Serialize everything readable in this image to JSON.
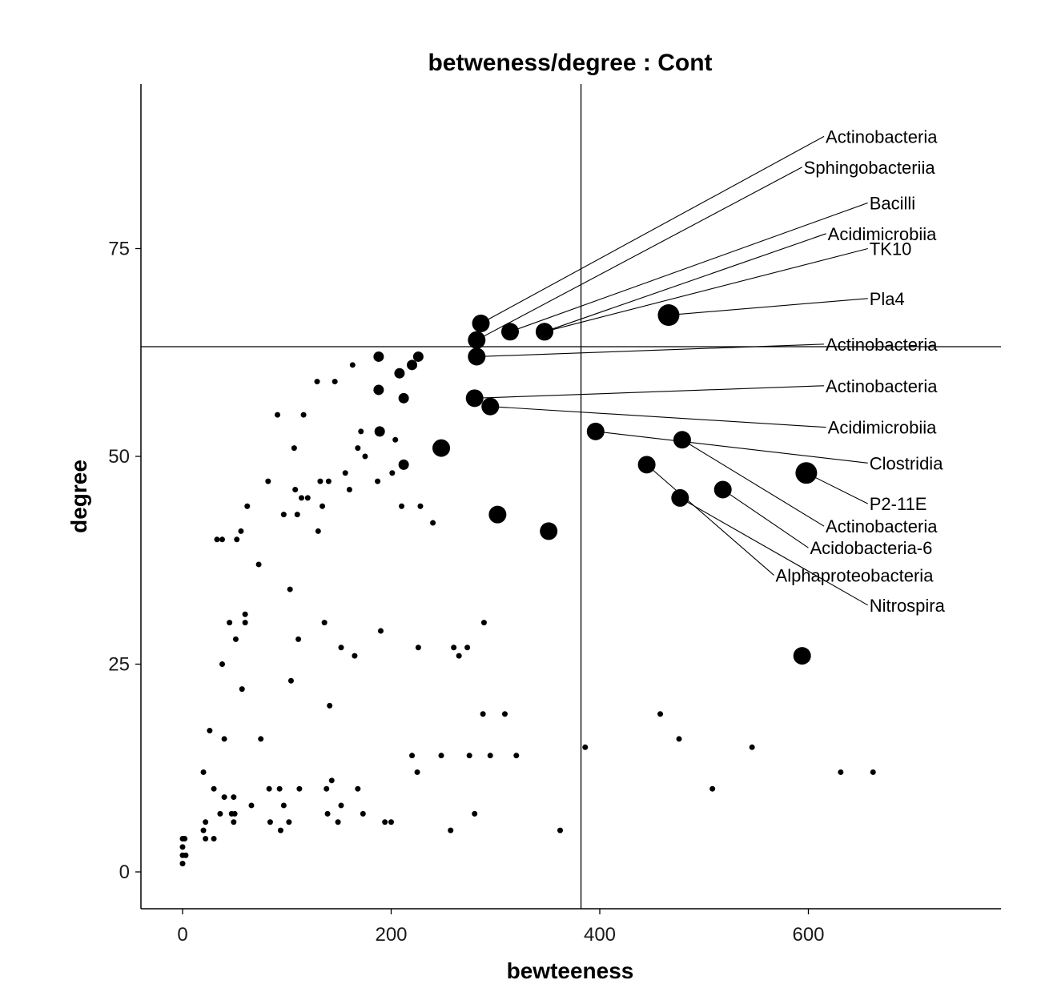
{
  "chart_data": {
    "type": "scatter",
    "title": "betweness/degree : Cont",
    "xlabel": "bewteeness",
    "ylabel": "degree",
    "xlim": [
      -40,
      790
    ],
    "ylim": [
      -5,
      95
    ],
    "x_ticks": [
      0,
      200,
      400,
      600
    ],
    "y_ticks": [
      0,
      25,
      50,
      75
    ],
    "x_tick_labels": [
      "0",
      "200",
      "400",
      "600"
    ],
    "y_tick_labels": [
      "0",
      "25",
      "50",
      "75"
    ],
    "reference_lines": {
      "x": 382,
      "y": 63.2
    },
    "grid": false,
    "legend": "none",
    "colors": {
      "points": "#000000",
      "lines": "#000000",
      "background": "#ffffff"
    },
    "small_points": [
      [
        0,
        1
      ],
      [
        0,
        2
      ],
      [
        0,
        3
      ],
      [
        0,
        4
      ],
      [
        2,
        4
      ],
      [
        3,
        2
      ],
      [
        20,
        5
      ],
      [
        20,
        12
      ],
      [
        22,
        6
      ],
      [
        22,
        4
      ],
      [
        26,
        17
      ],
      [
        30,
        10
      ],
      [
        30,
        4
      ],
      [
        33,
        40
      ],
      [
        38,
        40
      ],
      [
        36,
        7
      ],
      [
        38,
        25
      ],
      [
        40,
        16
      ],
      [
        40,
        9
      ],
      [
        45,
        30
      ],
      [
        47,
        7
      ],
      [
        49,
        9
      ],
      [
        49,
        6
      ],
      [
        50,
        7
      ],
      [
        51,
        28
      ],
      [
        52,
        40
      ],
      [
        56,
        41
      ],
      [
        57,
        22
      ],
      [
        60,
        30
      ],
      [
        60,
        31
      ],
      [
        62,
        44
      ],
      [
        66,
        8
      ],
      [
        73,
        37
      ],
      [
        75,
        16
      ],
      [
        82,
        47
      ],
      [
        83,
        10
      ],
      [
        84,
        6
      ],
      [
        91,
        55
      ],
      [
        93,
        10
      ],
      [
        94,
        5
      ],
      [
        97,
        43
      ],
      [
        97,
        8
      ],
      [
        102,
        6
      ],
      [
        103,
        34
      ],
      [
        104,
        23
      ],
      [
        107,
        51
      ],
      [
        108,
        46
      ],
      [
        110,
        43
      ],
      [
        111,
        28
      ],
      [
        112,
        10
      ],
      [
        114,
        45
      ],
      [
        116,
        55
      ],
      [
        120,
        45
      ],
      [
        129,
        59
      ],
      [
        130,
        41
      ],
      [
        132,
        47
      ],
      [
        134,
        44
      ],
      [
        136,
        30
      ],
      [
        138,
        10
      ],
      [
        139,
        7
      ],
      [
        140,
        47
      ],
      [
        141,
        20
      ],
      [
        143,
        11
      ],
      [
        146,
        59
      ],
      [
        149,
        6
      ],
      [
        152,
        8
      ],
      [
        152,
        27
      ],
      [
        156,
        48
      ],
      [
        160,
        46
      ],
      [
        163,
        61
      ],
      [
        165,
        26
      ],
      [
        168,
        10
      ],
      [
        168,
        51
      ],
      [
        171,
        53
      ],
      [
        173,
        7
      ],
      [
        175,
        50
      ],
      [
        187,
        47
      ],
      [
        190,
        29
      ],
      [
        194,
        6
      ],
      [
        200,
        6
      ],
      [
        201,
        48
      ],
      [
        204,
        52
      ],
      [
        210,
        44
      ],
      [
        220,
        14
      ],
      [
        225,
        12
      ],
      [
        226,
        27
      ],
      [
        228,
        44
      ],
      [
        240,
        42
      ],
      [
        248,
        14
      ],
      [
        257,
        5
      ],
      [
        260,
        27
      ],
      [
        265,
        26
      ],
      [
        273,
        27
      ],
      [
        275,
        14
      ],
      [
        280,
        7
      ],
      [
        288,
        19
      ],
      [
        289,
        30
      ],
      [
        295,
        14
      ],
      [
        309,
        19
      ],
      [
        320,
        14
      ],
      [
        362,
        5
      ],
      [
        386,
        15
      ],
      [
        458,
        19
      ],
      [
        476,
        16
      ],
      [
        508,
        10
      ],
      [
        546,
        15
      ],
      [
        631,
        12
      ],
      [
        662,
        12
      ]
    ],
    "medium_points": [
      [
        188,
        62
      ],
      [
        188,
        58
      ],
      [
        189,
        53
      ],
      [
        208,
        60
      ],
      [
        212,
        57
      ],
      [
        212,
        49
      ],
      [
        220,
        61
      ],
      [
        226,
        62
      ]
    ],
    "large_points": [
      [
        248,
        51
      ],
      [
        302,
        43
      ],
      [
        351,
        41
      ],
      [
        594,
        26
      ]
    ],
    "labeled_points": [
      {
        "x": 286,
        "y": 66,
        "size": "large",
        "label": "Actinobacteria",
        "label_pos": [
          615,
          88.5
        ]
      },
      {
        "x": 282,
        "y": 64,
        "size": "large",
        "label": "Sphingobacteriia",
        "label_pos": [
          594,
          84.8
        ]
      },
      {
        "x": 314,
        "y": 65,
        "size": "large",
        "label": "Bacilli",
        "label_pos": [
          657,
          80.5
        ]
      },
      {
        "x": 347,
        "y": 65,
        "size": "large",
        "label": "Acidimicrobiia",
        "label_pos": [
          617,
          76.8
        ]
      },
      {
        "x": 347,
        "y": 65,
        "size": "large",
        "label": "TK10",
        "label_pos": [
          657,
          75.0
        ]
      },
      {
        "x": 466,
        "y": 67,
        "size": "xlarge",
        "label": "Pla4",
        "label_pos": [
          657,
          69.0
        ]
      },
      {
        "x": 282,
        "y": 62,
        "size": "large",
        "label": "Actinobacteria",
        "label_pos": [
          615,
          63.5
        ]
      },
      {
        "x": 280,
        "y": 57,
        "size": "large",
        "label": "Actinobacteria",
        "label_pos": [
          615,
          58.5
        ]
      },
      {
        "x": 295,
        "y": 56,
        "size": "large",
        "label": "Acidimicrobiia",
        "label_pos": [
          617,
          53.5
        ]
      },
      {
        "x": 396,
        "y": 53,
        "size": "large",
        "label": "Clostridia",
        "label_pos": [
          657,
          49.2
        ]
      },
      {
        "x": 598,
        "y": 48,
        "size": "xlarge",
        "label": "P2-11E",
        "label_pos": [
          657,
          44.3
        ]
      },
      {
        "x": 479,
        "y": 52,
        "size": "large",
        "label": "Actinobacteria",
        "label_pos": [
          615,
          41.6
        ]
      },
      {
        "x": 518,
        "y": 46,
        "size": "large",
        "label": "Acidobacteria-6",
        "label_pos": [
          600,
          39.0
        ]
      },
      {
        "x": 445,
        "y": 49,
        "size": "large",
        "label": "Alphaproteobacteria",
        "label_pos": [
          567,
          35.7
        ]
      },
      {
        "x": 477,
        "y": 45,
        "size": "large",
        "label": "Nitrospira",
        "label_pos": [
          657,
          32.1
        ]
      }
    ]
  }
}
